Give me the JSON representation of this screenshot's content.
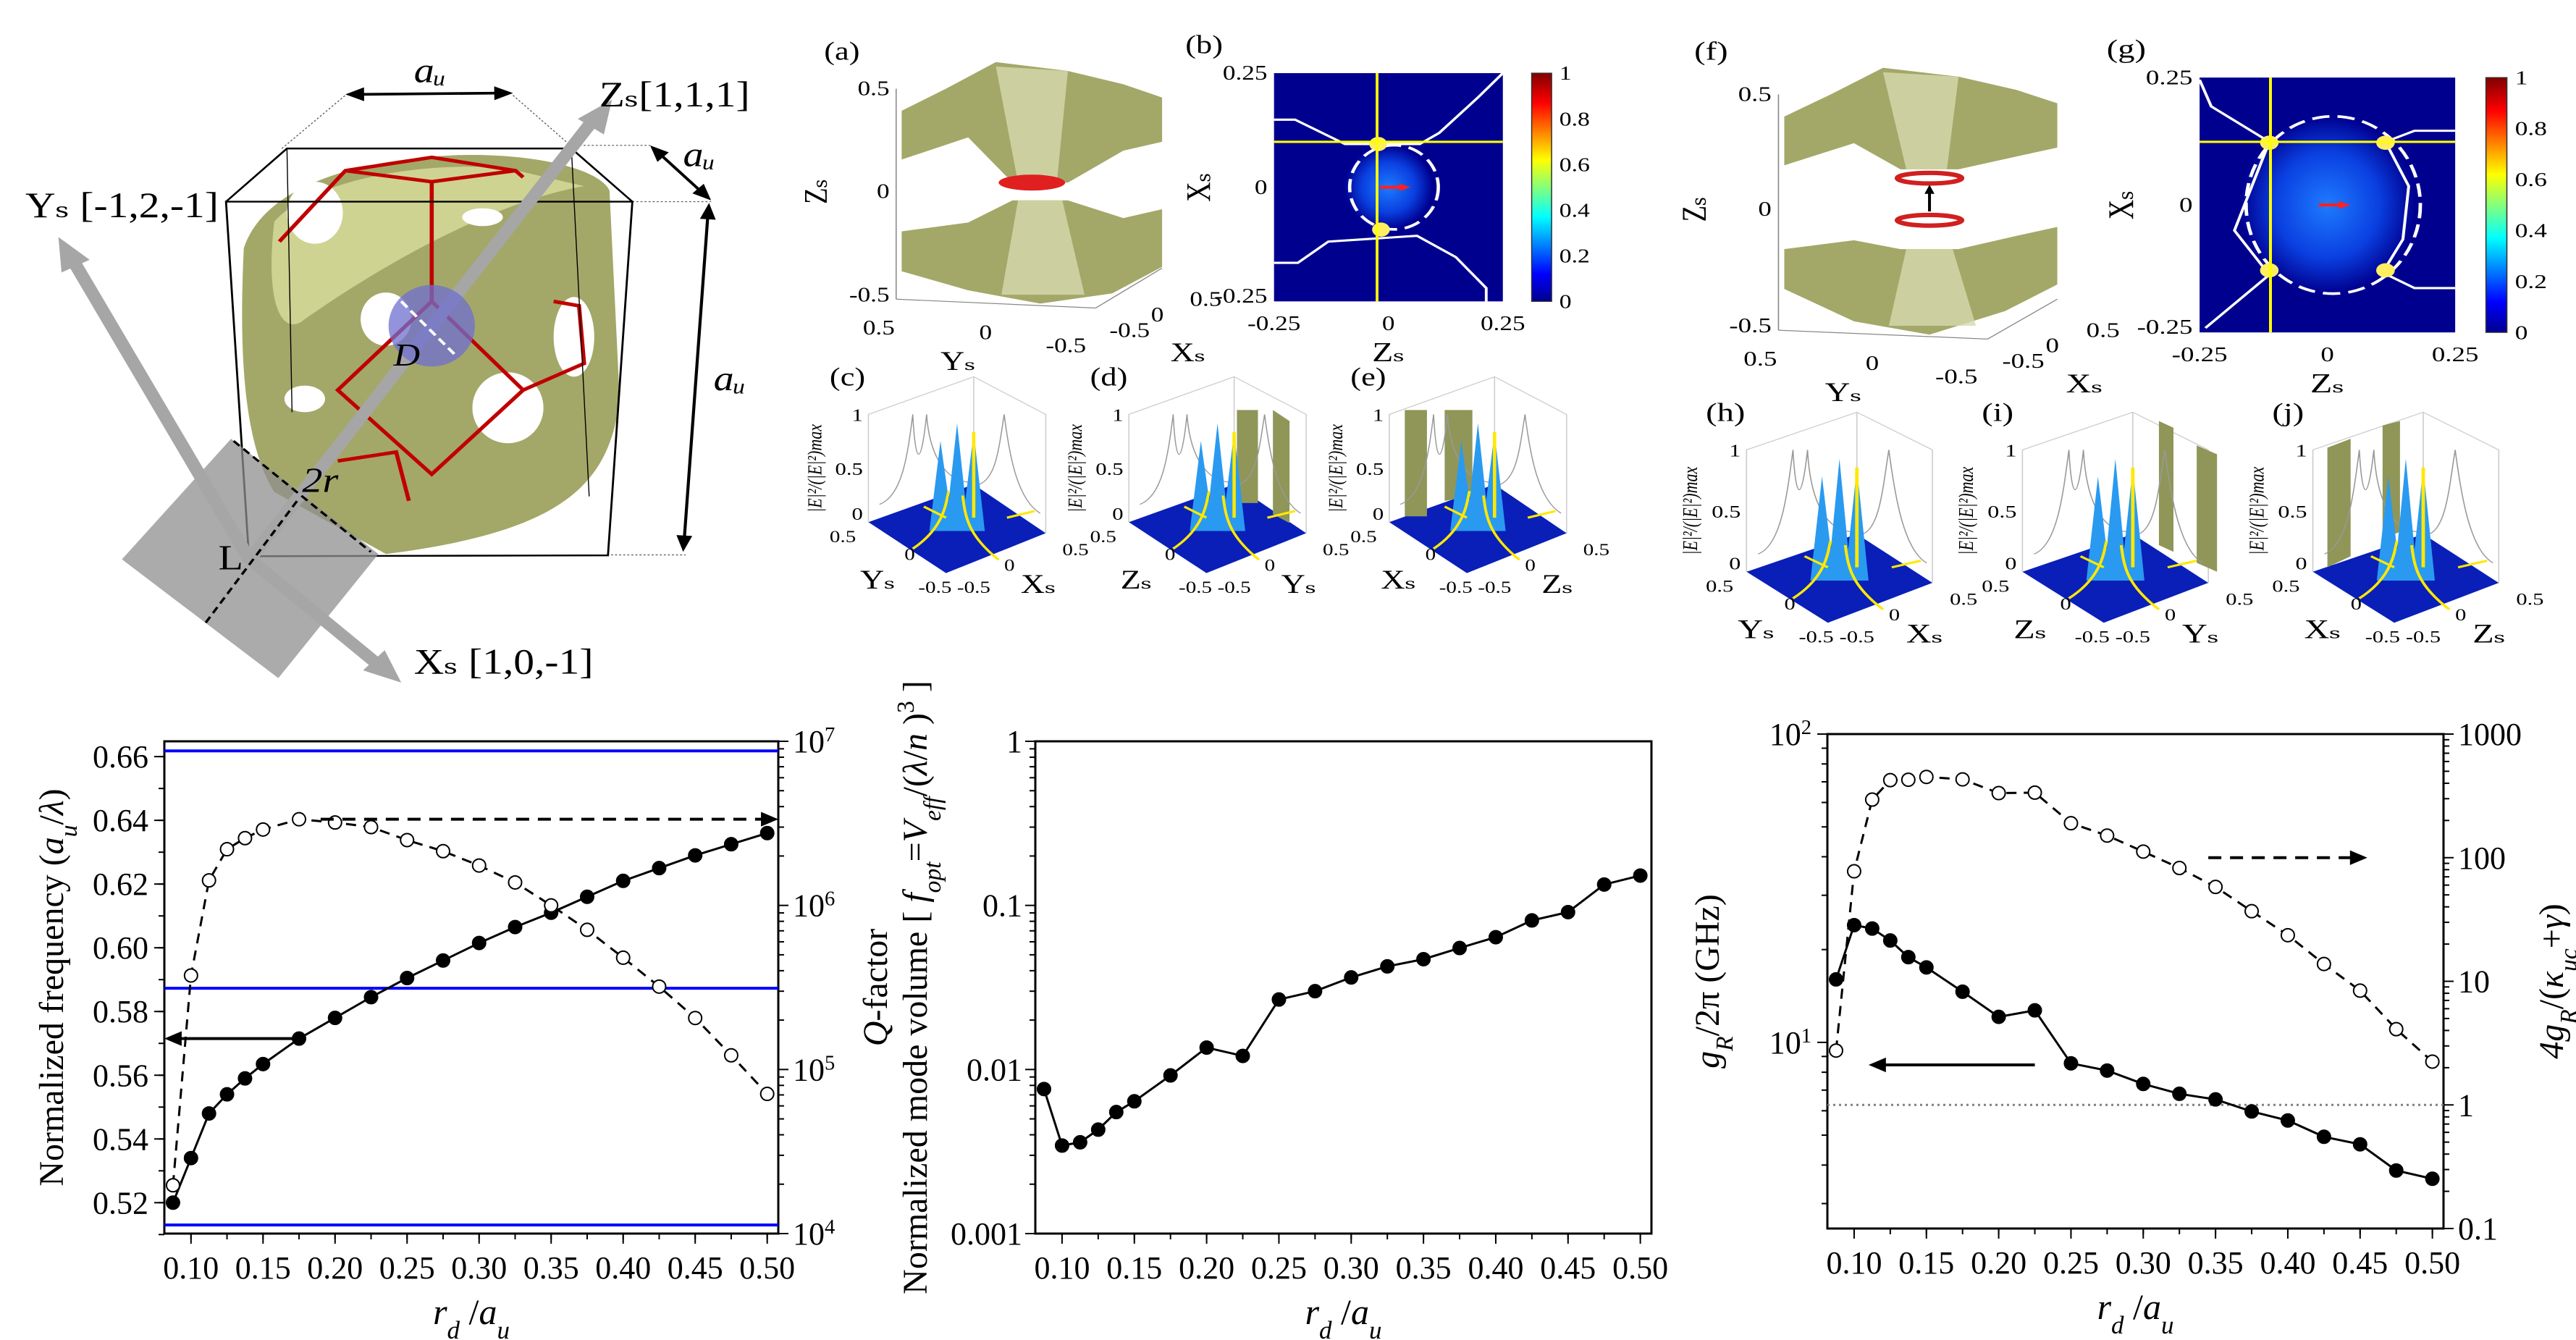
{
  "schematic": {
    "a_top": "aᵤ",
    "a_diag": "aᵤ",
    "a_vert": "aᵤ",
    "z_axis": "Zₛ[1,1,1]",
    "y_axis": "Yₛ [-1,2,-1]",
    "x_axis": "Xₛ [1,0,-1]",
    "d_label": "D",
    "r_label": "2r",
    "l_label": "L",
    "colors": {
      "lattice": "#a3a868",
      "lattice_light": "#dadd9c",
      "bonds": "#c00000",
      "mode": "#6f6fd0",
      "axis_arrows": "#a6a6a6"
    }
  },
  "panels": {
    "a": {
      "label": "(a)",
      "z_name": "Zₛ",
      "y_name": "Yₛ",
      "x_name": "Xₛ",
      "z_ticks": [
        "0.5",
        "0",
        "-0.5"
      ],
      "y_ticks": [
        "0.5",
        "0",
        "-0.5"
      ],
      "x_ticks": [
        "-0.5",
        "0",
        "0.5"
      ]
    },
    "b": {
      "label": "(b)",
      "y_name": "Xₛ",
      "x_name": "Zₛ",
      "y_ticks": [
        "0.25",
        "0",
        "-0.25"
      ],
      "x_ticks": [
        "-0.25",
        "0",
        "0.25"
      ],
      "cbar_ticks": [
        "1",
        "0.8",
        "0.6",
        "0.4",
        "0.2",
        "0"
      ]
    },
    "c": {
      "label": "(c)",
      "z_name": "|E|²/(|E|²)max",
      "z_ticks": [
        "1",
        "0.5",
        "0"
      ],
      "left_name": "Yₛ",
      "right_name": "Xₛ",
      "ticks": [
        "0.5",
        "0",
        "-0.5",
        "-0.5",
        "0",
        "0.5"
      ]
    },
    "d": {
      "label": "(d)",
      "z_name": "|E|²/(|E|²)max",
      "z_ticks": [
        "1",
        "0.5",
        "0"
      ],
      "left_name": "Zₛ",
      "right_name": "Yₛ",
      "ticks": [
        "0.5",
        "0",
        "-0.5",
        "-0.5",
        "0",
        "0.5"
      ]
    },
    "e": {
      "label": "(e)",
      "z_name": "|E|²/(|E|²)max",
      "z_ticks": [
        "1",
        "0.5",
        "0"
      ],
      "left_name": "Xₛ",
      "right_name": "Zₛ",
      "ticks": [
        "0.5",
        "0",
        "-0.5",
        "-0.5",
        "0",
        "0.5"
      ]
    },
    "f": {
      "label": "(f)",
      "z_name": "Zₛ",
      "y_name": "Yₛ",
      "x_name": "Xₛ",
      "z_ticks": [
        "0.5",
        "0",
        "-0.5"
      ],
      "y_ticks": [
        "0.5",
        "0",
        "-0.5"
      ],
      "x_ticks": [
        "-0.5",
        "0",
        "0.5"
      ]
    },
    "g": {
      "label": "(g)",
      "y_name": "Xₛ",
      "x_name": "Zₛ",
      "y_ticks": [
        "0.25",
        "0",
        "-0.25"
      ],
      "x_ticks": [
        "-0.25",
        "0",
        "0.25"
      ],
      "cbar_ticks": [
        "1",
        "0.8",
        "0.6",
        "0.4",
        "0.2",
        "0"
      ]
    },
    "h": {
      "label": "(h)",
      "z_name": "|E|²/(|E|²)max",
      "z_ticks": [
        "1",
        "0.5",
        "0"
      ],
      "left_name": "Yₛ",
      "right_name": "Xₛ",
      "ticks": [
        "0.5",
        "0",
        "-0.5",
        "-0.5",
        "0",
        "0.5"
      ]
    },
    "i": {
      "label": "(i)",
      "z_name": "|E|²/(|E|²)max",
      "z_ticks": [
        "1",
        "0.5",
        "0"
      ],
      "left_name": "Zₛ",
      "right_name": "Yₛ",
      "ticks": [
        "0.5",
        "0",
        "-0.5",
        "-0.5",
        "0",
        "0.5"
      ]
    },
    "j": {
      "label": "(j)",
      "z_name": "|E|²/(|E|²)max",
      "z_ticks": [
        "1",
        "0.5",
        "0"
      ],
      "left_name": "Xₛ",
      "right_name": "Zₛ",
      "ticks": [
        "0.5",
        "0",
        "-0.5",
        "-0.5",
        "0",
        "0.5"
      ]
    },
    "colors": {
      "field_bg": "#00008f",
      "guide_lines": "#ffff00",
      "boundary": "#ffffff",
      "polarization_arrow": "#ff2020"
    }
  },
  "chart_data": [
    {
      "type": "line",
      "xlabel": [
        {
          "t": "r",
          "i": true
        },
        {
          "t": "d",
          "sub": true,
          "i": true
        },
        {
          "t": " /"
        },
        {
          "t": "a",
          "i": true
        },
        {
          "t": "u",
          "sub": true,
          "i": true
        }
      ],
      "ylabel": [
        {
          "t": "Normalized frequency ("
        },
        {
          "t": "a",
          "i": true
        },
        {
          "t": "u",
          "sub": true,
          "i": true
        },
        {
          "t": "/"
        },
        {
          "t": "λ",
          "i": true
        },
        {
          "t": ")"
        }
      ],
      "y2label": [
        {
          "t": "Q",
          "i": true
        },
        {
          "t": "-factor"
        }
      ],
      "xlim": [
        0.0815,
        0.5077
      ],
      "x_ticks": [
        "0.10",
        "0.15",
        "0.20",
        "0.25",
        "0.30",
        "0.35",
        "0.40",
        "0.45",
        "0.50"
      ],
      "ylim": [
        0.5103,
        0.6648
      ],
      "y_scale": "linear",
      "y_ticks": [
        "0.52",
        "0.54",
        "0.56",
        "0.58",
        "0.60",
        "0.62",
        "0.64",
        "0.66"
      ],
      "y2lim": [
        10000,
        10000000
      ],
      "y2_scale": "log",
      "y2_ticks": [
        {
          "base": "10",
          "exp": "4"
        },
        {
          "base": "10",
          "exp": "5"
        },
        {
          "base": "10",
          "exp": "6"
        },
        {
          "base": "10",
          "exp": "7"
        }
      ],
      "x": [
        0.0875,
        0.1,
        0.1125,
        0.125,
        0.1375,
        0.15,
        0.175,
        0.2,
        0.225,
        0.25,
        0.275,
        0.3,
        0.325,
        0.35,
        0.375,
        0.4,
        0.425,
        0.45,
        0.475,
        0.5
      ],
      "series": [
        {
          "axis": "left",
          "style": "solid-filled",
          "values": [
            0.52,
            0.534,
            0.548,
            0.554,
            0.559,
            0.5635,
            0.5715,
            0.578,
            0.5845,
            0.5905,
            0.596,
            0.6015,
            0.6065,
            0.611,
            0.616,
            0.621,
            0.625,
            0.629,
            0.6325,
            0.636
          ]
        },
        {
          "axis": "right",
          "style": "dashed-open",
          "values": [
            19700,
            374000,
            1420000,
            2200000,
            2570000,
            2900000,
            3350000,
            3200000,
            3000000,
            2500000,
            2140000,
            1750000,
            1380000,
            1000000,
            710000,
            480000,
            320000,
            206000,
            122000,
            71000
          ]
        }
      ],
      "reference_lines": {
        "axis": "left",
        "values": [
          0.6618,
          0.5873,
          0.513
        ],
        "color": "#0000ff"
      },
      "arrows": [
        {
          "axis": "left",
          "y": 0.5715,
          "from": 0.175,
          "to": 0.0815,
          "style": "solid"
        },
        {
          "axis": "right",
          "y": 3350000,
          "from": 0.19,
          "to": 0.5077,
          "style": "dashed"
        }
      ]
    },
    {
      "type": "line",
      "xlabel": [
        {
          "t": "r",
          "i": true
        },
        {
          "t": "d",
          "sub": true,
          "i": true
        },
        {
          "t": " /"
        },
        {
          "t": "a",
          "i": true
        },
        {
          "t": "u",
          "sub": true,
          "i": true
        }
      ],
      "ylabel": [
        {
          "t": "Normalized mode volume [ "
        },
        {
          "t": "f",
          "i": true
        },
        {
          "t": "opt",
          "sub": true,
          "i": true
        },
        {
          "t": "="
        },
        {
          "t": "V",
          "i": true
        },
        {
          "t": "eff",
          "sub": true,
          "i": true
        },
        {
          "t": "/("
        },
        {
          "t": "λ",
          "i": true
        },
        {
          "t": "/"
        },
        {
          "t": "n",
          "i": true
        },
        {
          "t": " )"
        },
        {
          "t": "3",
          "sup": true
        },
        {
          "t": " ]"
        }
      ],
      "xlim": [
        0.0815,
        0.5077
      ],
      "x_ticks": [
        "0.10",
        "0.15",
        "0.20",
        "0.25",
        "0.30",
        "0.35",
        "0.40",
        "0.45",
        "0.50"
      ],
      "ylim": [
        0.001,
        1
      ],
      "y_scale": "log",
      "y_ticks": [
        "1",
        "0.1",
        "0.01",
        "0.001"
      ],
      "x": [
        0.0875,
        0.1,
        0.1125,
        0.125,
        0.1375,
        0.15,
        0.175,
        0.2,
        0.225,
        0.25,
        0.275,
        0.3,
        0.325,
        0.35,
        0.375,
        0.4,
        0.425,
        0.45,
        0.475,
        0.5
      ],
      "series": [
        {
          "axis": "left",
          "style": "solid-filled",
          "values": [
            0.0076,
            0.00344,
            0.0036,
            0.0043,
            0.0055,
            0.0064,
            0.0092,
            0.0136,
            0.0121,
            0.0267,
            0.03,
            0.0364,
            0.0425,
            0.047,
            0.055,
            0.064,
            0.081,
            0.091,
            0.134,
            0.152
          ]
        }
      ]
    },
    {
      "type": "line",
      "xlabel": [
        {
          "t": "r",
          "i": true
        },
        {
          "t": "d",
          "sub": true,
          "i": true
        },
        {
          "t": " /"
        },
        {
          "t": "a",
          "i": true
        },
        {
          "t": "u",
          "sub": true,
          "i": true
        }
      ],
      "ylabel": [
        {
          "t": "g",
          "i": true
        },
        {
          "t": "R",
          "sub": true,
          "i": true
        },
        {
          "t": "/2π (GHz)"
        }
      ],
      "y2label": [
        {
          "t": "4g",
          "i": true
        },
        {
          "t": "R",
          "sub": true,
          "i": true
        },
        {
          "t": "/("
        },
        {
          "t": "κ",
          "i": true
        },
        {
          "t": "uc",
          "sub": true,
          "i": true
        },
        {
          "t": "+"
        },
        {
          "t": "γ",
          "i": true
        },
        {
          "t": ")"
        }
      ],
      "xlim": [
        0.0815,
        0.5077
      ],
      "x_ticks": [
        "0.10",
        "0.15",
        "0.20",
        "0.25",
        "0.30",
        "0.35",
        "0.40",
        "0.45",
        "0.50"
      ],
      "ylim": [
        2.49,
        100
      ],
      "y_scale": "log",
      "y_ticks": [
        {
          "base": "10",
          "exp": "1"
        },
        {
          "base": "10",
          "exp": "2"
        }
      ],
      "y2lim": [
        0.1,
        1000
      ],
      "y2_scale": "log",
      "y2_ticks": [
        "0.1",
        "1",
        "10",
        "100",
        "1000"
      ],
      "x": [
        0.0875,
        0.1,
        0.1125,
        0.125,
        0.1375,
        0.15,
        0.175,
        0.2,
        0.225,
        0.25,
        0.275,
        0.3,
        0.325,
        0.35,
        0.375,
        0.4,
        0.425,
        0.45,
        0.475,
        0.5
      ],
      "series": [
        {
          "axis": "left",
          "style": "solid-filled",
          "values": [
            16.0,
            24.0,
            23.4,
            21.4,
            18.9,
            17.5,
            14.6,
            12.1,
            12.7,
            8.55,
            8.1,
            7.33,
            6.81,
            6.53,
            5.97,
            5.58,
            4.94,
            4.67,
            3.84,
            3.61
          ]
        },
        {
          "axis": "right",
          "style": "dashed-open",
          "values": [
            2.75,
            77.6,
            295,
            424,
            427,
            450,
            430,
            333,
            336,
            190,
            151,
            112,
            82.5,
            58,
            36.9,
            23.6,
            13.8,
            8.4,
            4.1,
            2.24
          ]
        }
      ],
      "reference_lines": {
        "axis": "right",
        "values": [
          1
        ],
        "color": "#808080",
        "style": "dotted"
      },
      "arrows": [
        {
          "axis": "left",
          "y": 8.45,
          "from": 0.225,
          "to": 0.11,
          "style": "solid"
        },
        {
          "axis": "right",
          "y": 100,
          "from": 0.345,
          "to": 0.455,
          "style": "dashed"
        }
      ]
    }
  ]
}
